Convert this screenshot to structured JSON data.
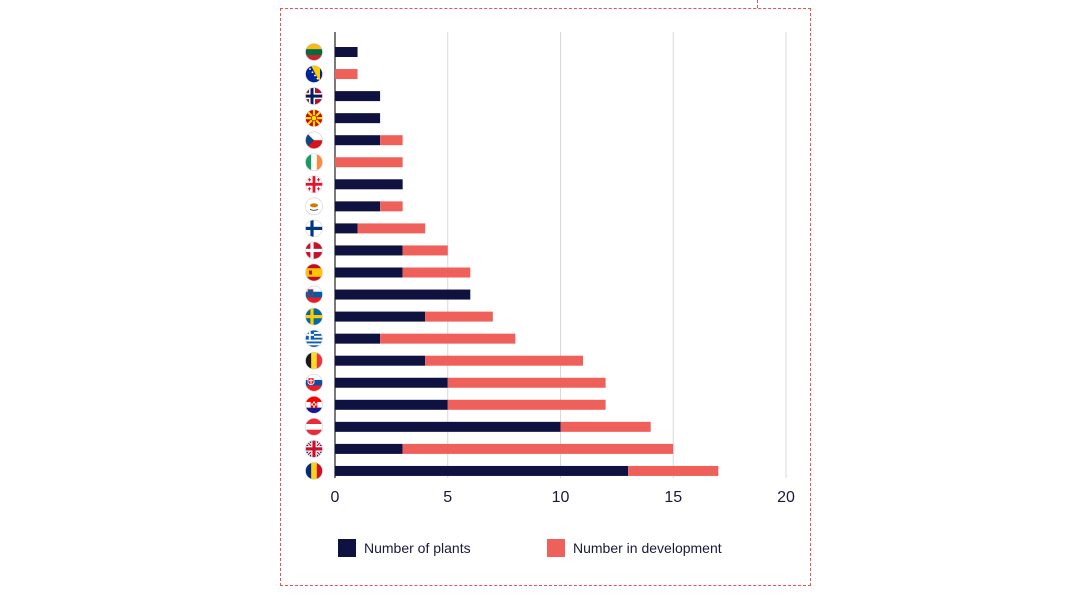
{
  "chart_data": {
    "type": "bar",
    "orientation": "horizontal",
    "stacked": true,
    "categories": [
      "lithuania-flag",
      "bosnia-flag",
      "norway-flag",
      "north-macedonia-flag",
      "czechia-flag",
      "ireland-flag",
      "georgia-flag",
      "cyprus-flag",
      "finland-flag",
      "denmark-flag",
      "spain-flag",
      "slovenia-flag",
      "sweden-flag",
      "greece-flag",
      "belgium-flag",
      "slovakia-flag",
      "croatia-flag",
      "austria-flag",
      "uk-flag",
      "romania-flag"
    ],
    "series": [
      {
        "name": "Number of plants",
        "color": "#0f1240",
        "values": [
          1,
          0,
          2,
          2,
          2,
          0,
          3,
          2,
          1,
          3,
          3,
          6,
          4,
          2,
          4,
          5,
          5,
          10,
          3,
          13
        ]
      },
      {
        "name": "Number in development",
        "color": "#f0605b",
        "values": [
          0,
          1,
          0,
          0,
          1,
          3,
          0,
          1,
          3,
          2,
          3,
          0,
          3,
          6,
          7,
          7,
          7,
          4,
          12,
          4
        ]
      }
    ],
    "xlim": [
      0,
      20
    ],
    "xticks": [
      "0",
      "5",
      "10",
      "15",
      "20"
    ],
    "grid": true,
    "legend_position": "bottom"
  }
}
